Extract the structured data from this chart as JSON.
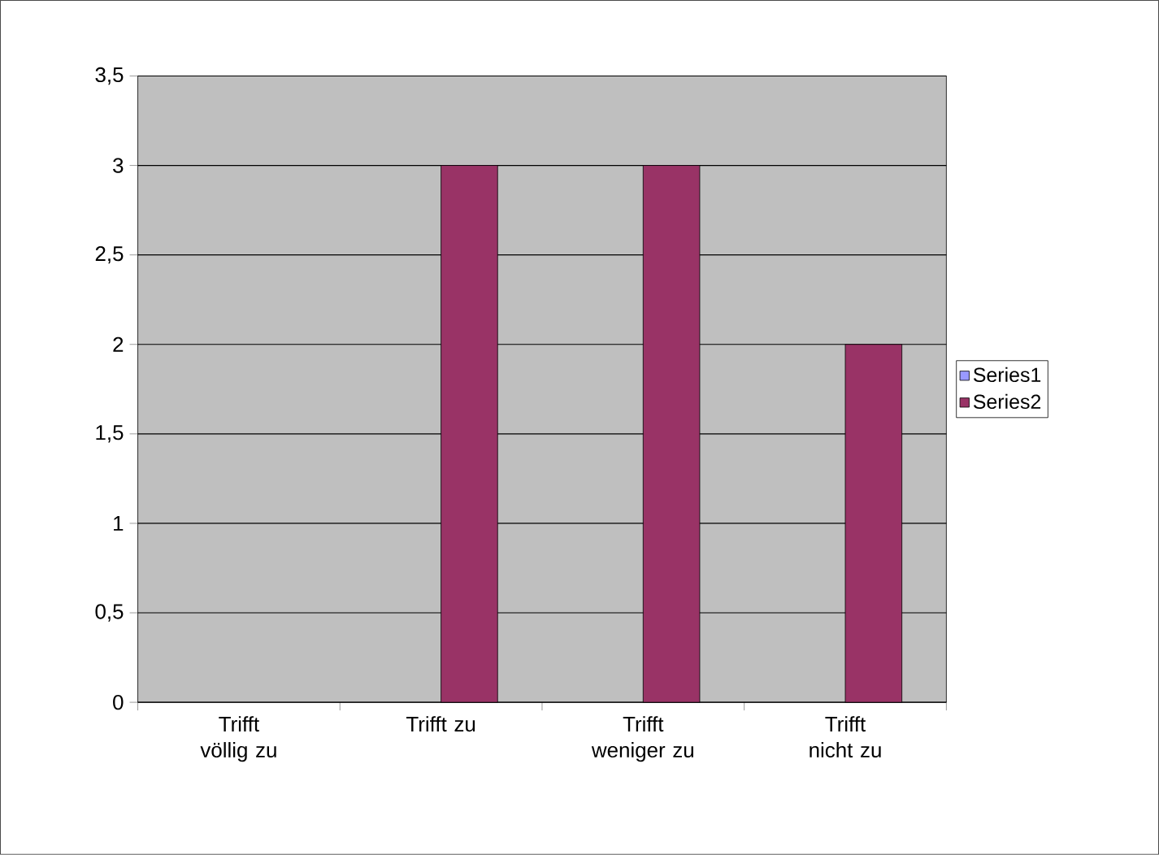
{
  "chart_data": {
    "type": "bar",
    "categories": [
      "Trifft völlig zu",
      "Trifft zu",
      "Trifft weniger zu",
      "Trifft nicht zu"
    ],
    "series": [
      {
        "name": "Series1",
        "color": "#9999ff",
        "values": [
          null,
          null,
          null,
          null
        ]
      },
      {
        "name": "Series2",
        "color": "#993366",
        "values": [
          null,
          3,
          3,
          2
        ]
      }
    ],
    "ylim": [
      0,
      3.5
    ],
    "yticks": [
      0,
      {
        "value": 0.5,
        "label": "0,5"
      },
      1,
      {
        "value": 1.5,
        "label": "1,5"
      },
      2,
      {
        "value": 2.5,
        "label": "2,5"
      },
      3,
      {
        "value": 3.5,
        "label": "3,5"
      }
    ],
    "grid": "y",
    "legend": "right"
  }
}
